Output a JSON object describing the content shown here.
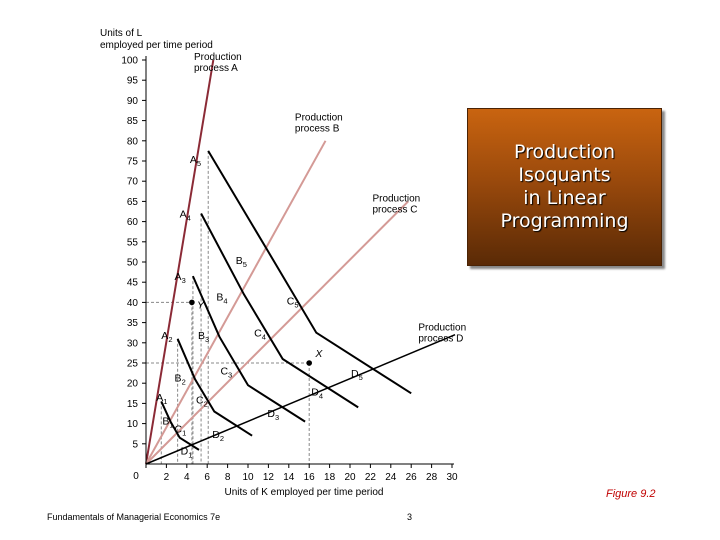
{
  "title": "Production\nIsoquants\nin Linear\nProgramming",
  "figure_label": "Figure 9.2",
  "footer": {
    "left": "Fundamentals of Managerial Economics 7e",
    "page": "3"
  },
  "colors": {
    "title_box_top": "#c96410",
    "title_box_bottom": "#5a2a06",
    "ray_a": "#8b2a36",
    "ray_b_c": "#d49a96",
    "isoquant": "#000000",
    "figure_label": "#c00000"
  },
  "chart_data": {
    "type": "line",
    "ylabel": "Units of L employed per time period",
    "xlabel": "Units of K employed per time period",
    "xlim": [
      0,
      30
    ],
    "ylim": [
      0,
      100
    ],
    "x_ticks": [
      0,
      2,
      4,
      6,
      8,
      10,
      12,
      14,
      16,
      18,
      20,
      22,
      24,
      26,
      28,
      30
    ],
    "y_ticks": [
      5,
      10,
      15,
      20,
      25,
      30,
      35,
      40,
      45,
      50,
      55,
      60,
      65,
      70,
      75,
      80,
      85,
      90,
      95,
      100
    ],
    "rays": [
      {
        "name": "Production process A",
        "label_lines": [
          "Production",
          "process A"
        ],
        "end": [
          6.6,
          100
        ],
        "label_at": [
          4.7,
          100
        ],
        "color": "#8b2a36",
        "width": 2
      },
      {
        "name": "Production process B",
        "label_lines": [
          "Production",
          "process B"
        ],
        "end": [
          17.6,
          80
        ],
        "label_at": [
          14.6,
          85
        ],
        "color": "#d49a96",
        "width": 2
      },
      {
        "name": "Production process C",
        "label_lines": [
          "Production",
          "process C"
        ],
        "end": [
          25.7,
          65
        ],
        "label_at": [
          22.2,
          65
        ],
        "color": "#d49a96",
        "width": 2
      },
      {
        "name": "Production process D",
        "label_lines": [
          "Production",
          "process D"
        ],
        "end": [
          30.3,
          32
        ],
        "label_at": [
          26.7,
          33
        ],
        "color": "#000000",
        "width": 1.5
      }
    ],
    "isoquants": [
      {
        "id": "1",
        "points": [
          [
            1.5,
            15.5
          ],
          [
            2.4,
            10.5
          ],
          [
            3.3,
            6.5
          ],
          [
            5.2,
            3.5
          ]
        ]
      },
      {
        "id": "2",
        "points": [
          [
            3.1,
            31
          ],
          [
            4.8,
            21
          ],
          [
            6.7,
            13
          ],
          [
            10.4,
            7
          ]
        ]
      },
      {
        "id": "3",
        "points": [
          [
            4.6,
            46.5
          ],
          [
            7.2,
            31.5
          ],
          [
            10.0,
            19.5
          ],
          [
            15.6,
            10.5
          ]
        ]
      },
      {
        "id": "4",
        "points": [
          [
            5.4,
            62
          ],
          [
            9.6,
            42
          ],
          [
            13.4,
            26
          ],
          [
            20.8,
            14
          ]
        ]
      },
      {
        "id": "5",
        "points": [
          [
            6.1,
            77.5
          ],
          [
            12.0,
            52.5
          ],
          [
            16.7,
            32.5
          ],
          [
            26.0,
            17.5
          ]
        ]
      }
    ],
    "point_labels": [
      {
        "base": "A",
        "sub": "1",
        "at": [
          1.0,
          15.6
        ]
      },
      {
        "base": "B",
        "sub": "1",
        "at": [
          1.6,
          9.8
        ]
      },
      {
        "base": "C",
        "sub": "1",
        "at": [
          2.8,
          7.8
        ]
      },
      {
        "base": "D",
        "sub": "1",
        "at": [
          3.4,
          2.3
        ]
      },
      {
        "base": "A",
        "sub": "2",
        "at": [
          1.5,
          31
        ]
      },
      {
        "base": "B",
        "sub": "2",
        "at": [
          2.8,
          20.4
        ]
      },
      {
        "base": "C",
        "sub": "2",
        "at": [
          4.9,
          15
        ]
      },
      {
        "base": "D",
        "sub": "2",
        "at": [
          6.5,
          6.4
        ]
      },
      {
        "base": "A",
        "sub": "3",
        "at": [
          2.8,
          45.5
        ]
      },
      {
        "base": "B",
        "sub": "3",
        "at": [
          5.1,
          31
        ]
      },
      {
        "base": "C",
        "sub": "3",
        "at": [
          7.3,
          22.2
        ]
      },
      {
        "base": "D",
        "sub": "3",
        "at": [
          11.9,
          11.6
        ]
      },
      {
        "base": "A",
        "sub": "4",
        "at": [
          3.3,
          61
        ]
      },
      {
        "base": "B",
        "sub": "4",
        "at": [
          6.9,
          40.5
        ]
      },
      {
        "base": "C",
        "sub": "4",
        "at": [
          10.6,
          31.5
        ]
      },
      {
        "base": "D",
        "sub": "4",
        "at": [
          16.2,
          17
        ]
      },
      {
        "base": "A",
        "sub": "5",
        "at": [
          4.3,
          74.5
        ]
      },
      {
        "base": "B",
        "sub": "5",
        "at": [
          8.8,
          49.5
        ]
      },
      {
        "base": "C",
        "sub": "5",
        "at": [
          13.8,
          39.5
        ]
      },
      {
        "base": "D",
        "sub": "5",
        "at": [
          20.1,
          21.5
        ]
      }
    ],
    "highlight_points": [
      {
        "label": "Y",
        "x": 4.5,
        "y": 40,
        "label_at": [
          5.0,
          38.5
        ]
      },
      {
        "label": "X",
        "x": 16,
        "y": 25,
        "label_at": [
          16.6,
          26.5
        ]
      }
    ]
  }
}
